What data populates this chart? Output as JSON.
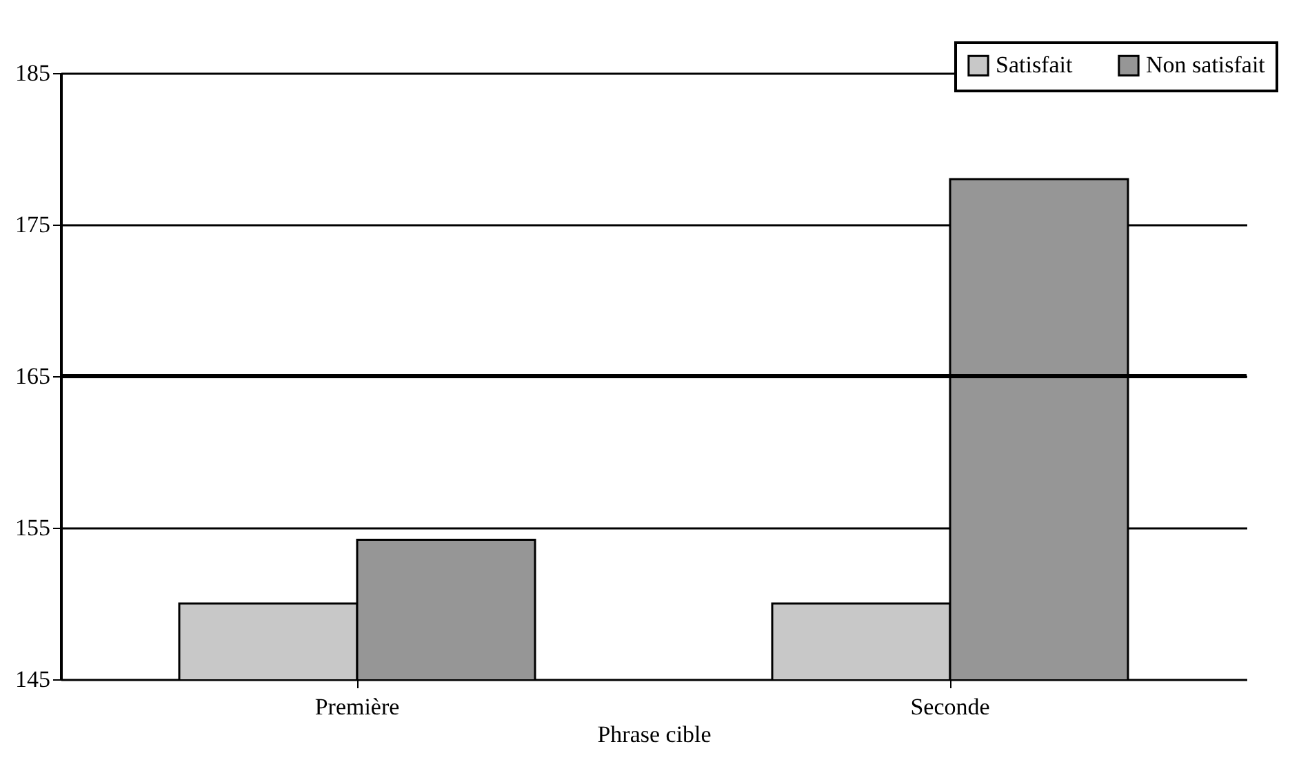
{
  "chart_data": {
    "type": "bar",
    "xlabel": "Phrase cible",
    "categories": [
      "Première",
      "Seconde"
    ],
    "series": [
      {
        "name": "Satisfait",
        "color": "#c8c8c8",
        "values": [
          150,
          150
        ]
      },
      {
        "name": "Non satisfait",
        "color": "#969696",
        "values": [
          154.2,
          178
        ]
      }
    ],
    "ylim": [
      145,
      185
    ],
    "yticks": [
      145,
      155,
      165,
      175,
      185
    ],
    "grid": "y",
    "legend": "top right",
    "ref_lines": [
      {
        "axis": "y",
        "value": 165,
        "color": "#000000"
      }
    ]
  }
}
